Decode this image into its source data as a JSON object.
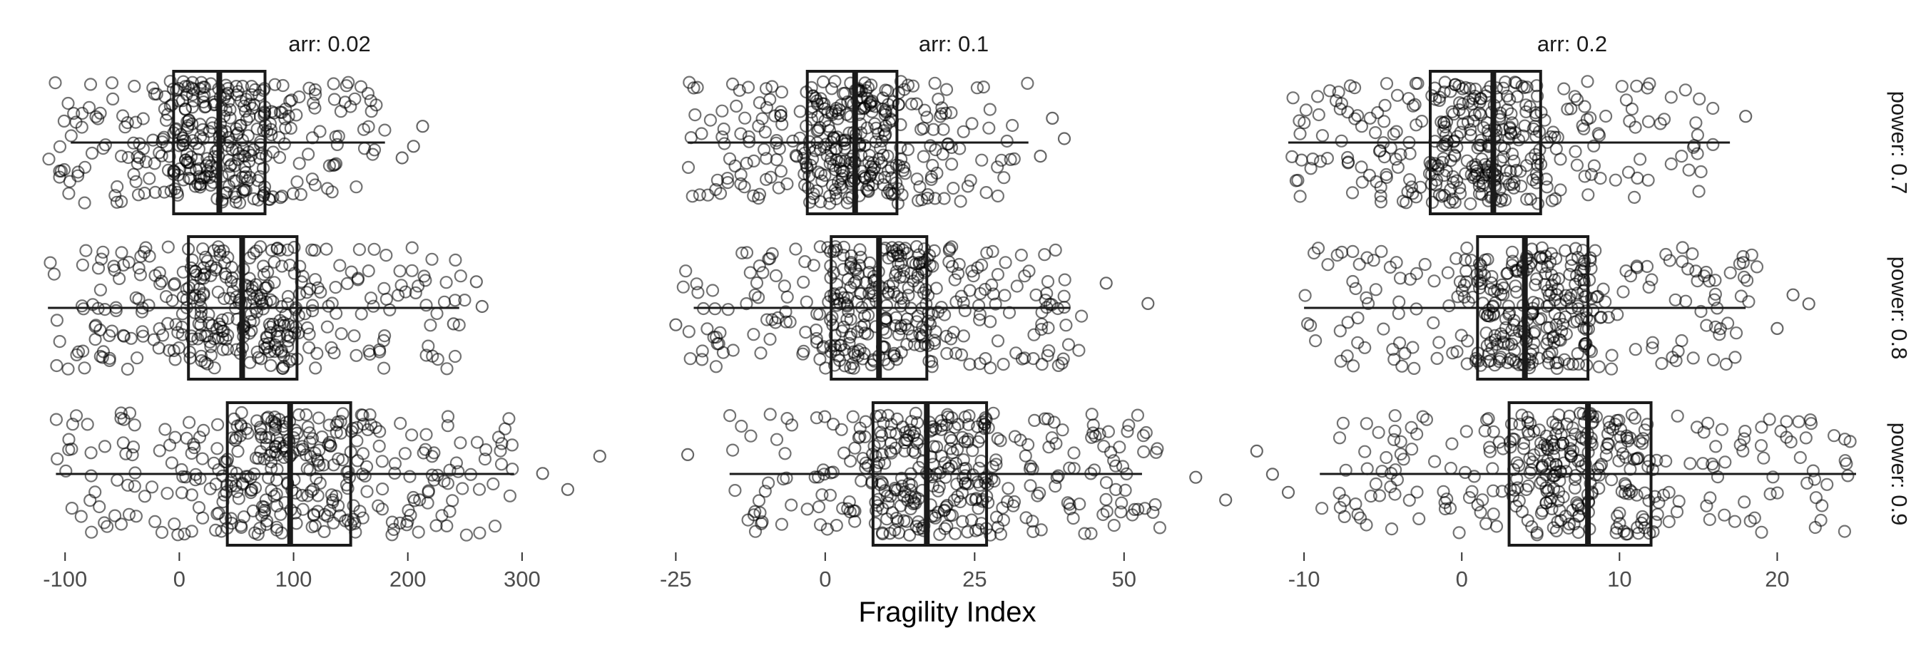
{
  "chart_data": {
    "type": "box-jitter",
    "xlabel": "Fragility Index",
    "ylabel": "",
    "column_facet_labels": [
      "arr: 0.02",
      "arr: 0.1",
      "arr: 0.2"
    ],
    "row_facet_labels": [
      "power: 0.7",
      "power: 0.8",
      "power: 0.9"
    ],
    "grid": false,
    "panels": [
      {
        "column": "arr: 0.02",
        "xlim": [
          -117,
          380
        ],
        "ticks": [
          -100,
          0,
          100,
          200,
          300
        ],
        "tick_labels": [
          "-100",
          "0",
          "100",
          "200",
          "300"
        ],
        "rows": [
          {
            "row": "power: 0.7",
            "whisker_low": -95,
            "q1": -5,
            "median": 35,
            "q3": 75,
            "whisker_high": 180,
            "spread_low": -115,
            "spread_high": 180,
            "outliers": [
              213,
              205,
              195
            ]
          },
          {
            "row": "power: 0.8",
            "whisker_low": -115,
            "q1": 8,
            "median": 55,
            "q3": 103,
            "whisker_high": 245,
            "spread_low": -113,
            "spread_high": 250,
            "outliers": [
              260,
              265,
              240
            ]
          },
          {
            "row": "power: 0.9",
            "whisker_low": -108,
            "q1": 42,
            "median": 97,
            "q3": 150,
            "whisker_high": 293,
            "spread_low": -108,
            "spread_high": 293,
            "outliers": [
              368,
              318,
              340
            ]
          }
        ]
      },
      {
        "column": "arr: 0.1",
        "xlim": [
          -26,
          69
        ],
        "ticks": [
          -25,
          0,
          25,
          50
        ],
        "tick_labels": [
          "-25",
          "0",
          "25",
          "50"
        ],
        "rows": [
          {
            "row": "power: 0.7",
            "whisker_low": -23,
            "q1": -3,
            "median": 5,
            "q3": 12,
            "whisker_high": 34,
            "spread_low": -23,
            "spread_high": 34,
            "outliers": [
              38,
              40,
              36
            ]
          },
          {
            "row": "power: 0.8",
            "whisker_low": -22,
            "q1": 1,
            "median": 9,
            "q3": 17,
            "whisker_high": 41,
            "spread_low": -24,
            "spread_high": 43,
            "outliers": [
              47,
              54,
              -25
            ]
          },
          {
            "row": "power: 0.9",
            "whisker_low": -16,
            "q1": 8,
            "median": 17,
            "q3": 27,
            "whisker_high": 53,
            "spread_low": -16,
            "spread_high": 56,
            "outliers": [
              -23,
              62,
              67
            ]
          }
        ]
      },
      {
        "column": "arr: 0.2",
        "xlim": [
          -11,
          25
        ],
        "ticks": [
          -10,
          0,
          10,
          20
        ],
        "tick_labels": [
          "-10",
          "0",
          "10",
          "20"
        ],
        "rows": [
          {
            "row": "power: 0.7",
            "whisker_low": -11,
            "q1": -2,
            "median": 2,
            "q3": 5,
            "whisker_high": 17,
            "spread_low": -11,
            "spread_high": 16,
            "outliers": [
              18
            ]
          },
          {
            "row": "power: 0.8",
            "whisker_low": -10,
            "q1": 1,
            "median": 4,
            "q3": 8,
            "whisker_high": 18,
            "spread_low": -10,
            "spread_high": 19,
            "outliers": [
              21,
              22,
              20
            ]
          },
          {
            "row": "power: 0.9",
            "whisker_low": -9,
            "q1": 3,
            "median": 8,
            "q3": 12,
            "whisker_high": 25,
            "spread_low": -9,
            "spread_high": 25,
            "outliers": [
              -13,
              -12,
              -11
            ]
          }
        ]
      }
    ]
  }
}
